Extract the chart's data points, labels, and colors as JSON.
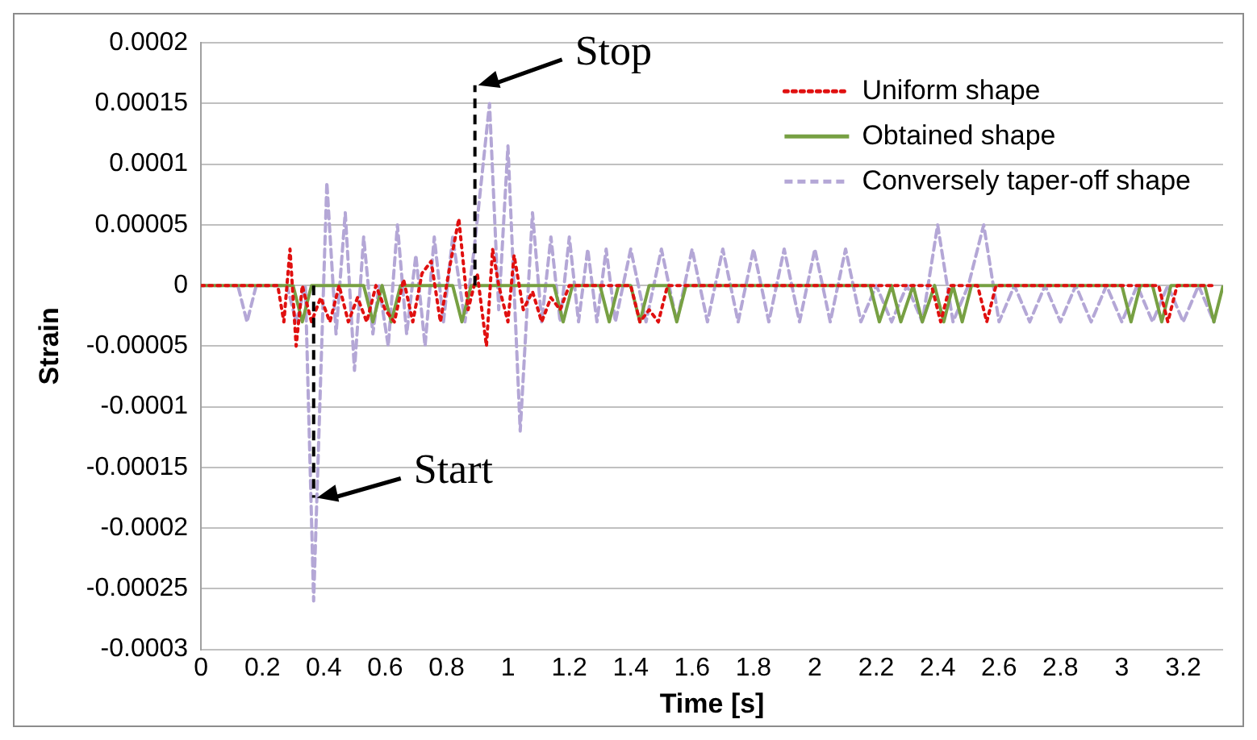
{
  "chart_data": {
    "type": "line",
    "xlabel": "Time [s]",
    "ylabel": "Strain",
    "xlim": [
      0,
      3.33
    ],
    "xticks": [
      0,
      0.2,
      0.4,
      0.6,
      0.8,
      1,
      1.2,
      1.4,
      1.6,
      1.8,
      2,
      2.2,
      2.4,
      2.6,
      2.8,
      3,
      3.2
    ],
    "ylim": [
      -0.0003,
      0.0002
    ],
    "yticks": [
      -0.0003,
      -0.00025,
      -0.0002,
      -0.00015,
      -0.0001,
      {
        "value": -5e-05,
        "label": "-0.00005"
      },
      0,
      {
        "value": 5e-05,
        "label": "0.00005"
      },
      0.0001,
      0.00015,
      0.0002
    ],
    "grid": "y",
    "legend": "top right",
    "marker": "none",
    "annotations": [
      {
        "text": "Start",
        "x": 0.367,
        "y": -0.000175
      },
      "Stop"
    ],
    "series": [
      {
        "name": "Uniform shape",
        "color": "#e01010",
        "line_style": "dotted",
        "x": [
          0,
          0.25,
          0.27,
          0.29,
          0.31,
          0.33,
          0.36,
          0.39,
          0.42,
          0.45,
          0.48,
          0.51,
          0.54,
          0.57,
          0.6,
          0.63,
          0.66,
          0.69,
          0.72,
          0.75,
          0.78,
          0.81,
          0.84,
          0.87,
          0.9,
          0.93,
          0.95,
          0.97,
          1,
          1.02,
          1.05,
          1.08,
          1.11,
          1.14,
          1.17,
          1.2,
          1.4,
          1.43,
          1.46,
          1.49,
          1.52,
          2.38,
          2.41,
          2.44,
          2.53,
          2.56,
          2.59,
          3.12,
          3.15,
          3.18,
          3.3
        ],
        "values": [
          0,
          0,
          -3e-05,
          3e-05,
          -5e-05,
          0,
          -3e-05,
          -1e-05,
          -3e-05,
          0,
          -3e-05,
          -1e-05,
          -3e-05,
          0,
          -2e-05,
          -3e-05,
          5e-06,
          -3e-05,
          1e-05,
          2e-05,
          -3e-05,
          1.5e-05,
          5.5e-05,
          -2e-05,
          1e-05,
          -5e-05,
          3e-05,
          0,
          -3e-05,
          2.5e-05,
          -2e-05,
          -5e-06,
          -3e-05,
          -1e-05,
          -2e-05,
          0,
          0,
          -3e-05,
          -2e-05,
          -3e-05,
          0,
          0,
          -3e-05,
          0,
          0,
          -3e-05,
          0,
          0,
          -3e-05,
          0,
          0
        ]
      },
      {
        "name": "Obtained shape",
        "color": "#77a043",
        "line_style": "solid",
        "x": [
          0,
          0.3,
          0.33,
          0.36,
          0.53,
          0.56,
          0.59,
          0.62,
          0.65,
          0.82,
          0.85,
          0.88,
          1.15,
          1.18,
          1.21,
          1.3,
          1.33,
          1.36,
          1.4,
          1.43,
          1.46,
          1.52,
          1.55,
          1.58,
          2.18,
          2.21,
          2.25,
          2.28,
          2.32,
          2.35,
          2.39,
          2.42,
          2.45,
          2.48,
          2.51,
          3,
          3.03,
          3.06,
          3.1,
          3.13,
          3.16,
          3.27,
          3.3,
          3.33
        ],
        "values": [
          0,
          0,
          -3e-05,
          0,
          0,
          -3e-05,
          0,
          -3e-05,
          0,
          0,
          -3e-05,
          0,
          0,
          -3e-05,
          0,
          0,
          -3e-05,
          0,
          0,
          -3e-05,
          0,
          0,
          -3e-05,
          0,
          0,
          -3e-05,
          0,
          -3e-05,
          0,
          -3e-05,
          0,
          -3e-05,
          0,
          -3e-05,
          0,
          0,
          -3e-05,
          0,
          0,
          -3e-05,
          0,
          0,
          -3e-05,
          0
        ]
      },
      {
        "name": "Conversely taper-off shape",
        "color": "#b4a7d6",
        "line_style": "dashed",
        "x": [
          0,
          0.12,
          0.15,
          0.18,
          0.28,
          0.31,
          0.34,
          0.367,
          0.41,
          0.44,
          0.47,
          0.5,
          0.53,
          0.56,
          0.58,
          0.61,
          0.64,
          0.67,
          0.7,
          0.73,
          0.76,
          0.79,
          0.82,
          0.86,
          0.89,
          0.94,
          0.97,
          1,
          1.04,
          1.08,
          1.11,
          1.14,
          1.17,
          1.2,
          1.23,
          1.26,
          1.29,
          1.32,
          1.35,
          1.4,
          1.45,
          1.5,
          1.55,
          1.6,
          1.65,
          1.7,
          1.75,
          1.8,
          1.85,
          1.9,
          1.95,
          2,
          2.05,
          2.1,
          2.15,
          2.2,
          2.25,
          2.3,
          2.35,
          2.4,
          2.45,
          2.5,
          2.55,
          2.6,
          2.65,
          2.7,
          2.75,
          2.8,
          2.85,
          2.9,
          2.95,
          3,
          3.05,
          3.1,
          3.15,
          3.2,
          3.25,
          3.3
        ],
        "values": [
          0,
          0,
          -3e-05,
          0,
          0,
          -3e-05,
          0,
          -0.00026,
          8.5e-05,
          -4e-05,
          6e-05,
          -7e-05,
          4e-05,
          -4e-05,
          0,
          -5e-05,
          5e-05,
          -4e-05,
          2.5e-05,
          -5e-05,
          4e-05,
          -3e-05,
          4e-05,
          -3e-05,
          3e-05,
          0.00015,
          -2e-05,
          0.000115,
          -0.00012,
          6e-05,
          -3e-05,
          4e-05,
          -3e-05,
          4e-05,
          -3e-05,
          3e-05,
          -3e-05,
          3e-05,
          -3e-05,
          3e-05,
          -3e-05,
          3e-05,
          -3e-05,
          3e-05,
          -3e-05,
          3e-05,
          -3e-05,
          3e-05,
          -3e-05,
          3e-05,
          -3e-05,
          3e-05,
          -3e-05,
          3e-05,
          -3e-05,
          0,
          -3e-05,
          0,
          -3e-05,
          5e-05,
          -3e-05,
          0,
          5e-05,
          -3e-05,
          0,
          -3e-05,
          0,
          -3e-05,
          0,
          -3e-05,
          0,
          -3e-05,
          0,
          -3e-05,
          0,
          -3e-05,
          0,
          -3e-05
        ]
      }
    ]
  }
}
